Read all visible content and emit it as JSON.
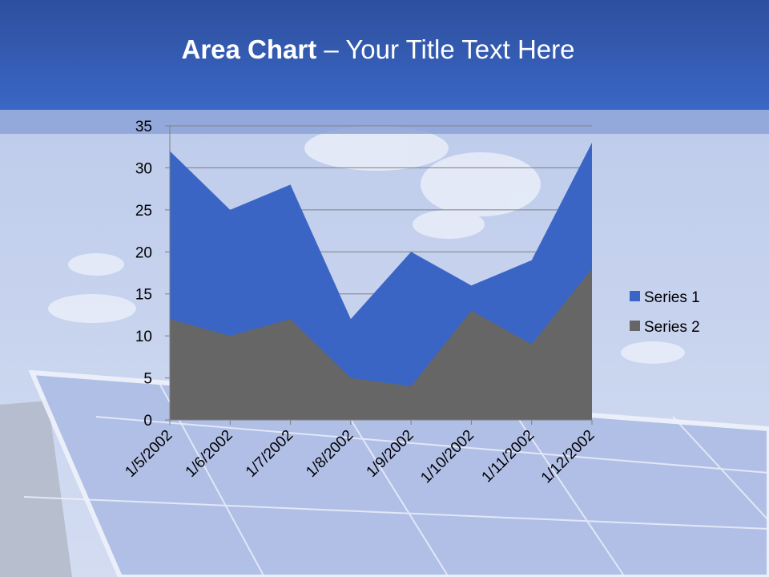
{
  "slide": {
    "title_bold": "Area Chart",
    "title_rest": " – Your Title Text Here"
  },
  "colors": {
    "series1": "#3a65c5",
    "series2": "#666666",
    "header": "#3a67c6"
  },
  "chart_data": {
    "type": "area",
    "title": "",
    "xlabel": "",
    "ylabel": "",
    "categories": [
      "1/5/2002",
      "1/6/2002",
      "1/7/2002",
      "1/8/2002",
      "1/9/2002",
      "1/10/2002",
      "1/11/2002",
      "1/12/2002"
    ],
    "series": [
      {
        "name": "Series 1",
        "values": [
          32,
          25,
          28,
          12,
          20,
          16,
          19,
          33
        ]
      },
      {
        "name": "Series 2",
        "values": [
          12,
          10,
          12,
          5,
          4,
          13,
          9,
          18
        ]
      }
    ],
    "ylim": [
      0,
      35
    ],
    "yticks": [
      0,
      5,
      10,
      15,
      20,
      25,
      30,
      35
    ],
    "grid": true,
    "legend_position": "right"
  }
}
